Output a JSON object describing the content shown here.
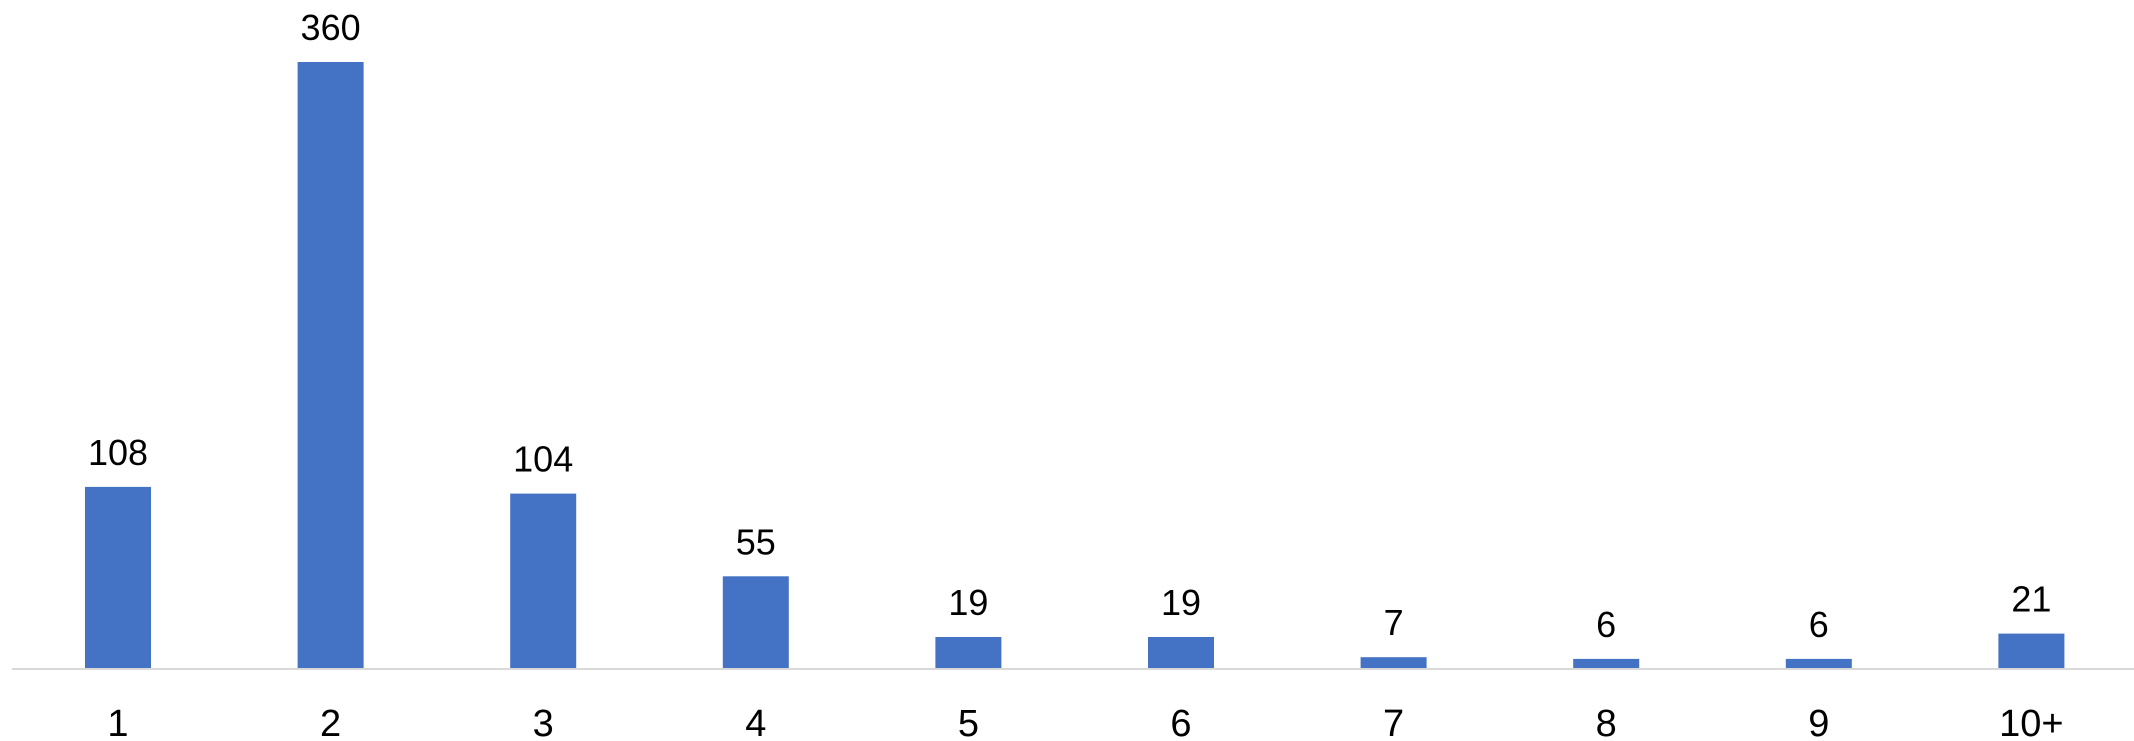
{
  "chart_data": {
    "type": "bar",
    "categories": [
      "1",
      "2",
      "3",
      "4",
      "5",
      "6",
      "7",
      "8",
      "9",
      "10+"
    ],
    "values": [
      108,
      360,
      104,
      55,
      19,
      19,
      7,
      6,
      6,
      21
    ],
    "title": "",
    "xlabel": "",
    "ylabel": "",
    "ylim": [
      0,
      360
    ],
    "grid": false,
    "legend": "none",
    "data_labels": true,
    "colors": {
      "bar": "#4472C4",
      "axis": "#D9D9D9",
      "text": "#000000"
    }
  }
}
